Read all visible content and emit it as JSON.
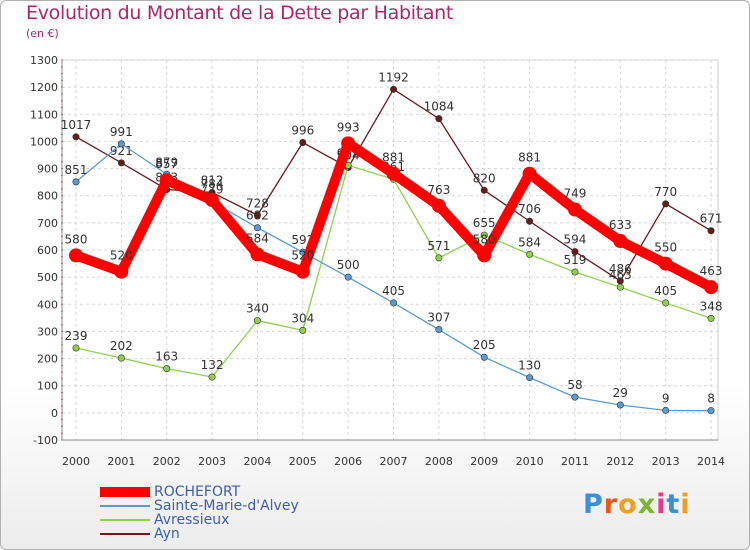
{
  "title": "Evolution du Montant de la Dette par Habitant",
  "subtitle": "(en €)",
  "brand": "Proxiti",
  "brand_colors": [
    "#3a8fd8",
    "#e85a1c",
    "#f0a020",
    "#7ab82a",
    "#e83a8a",
    "#3a8fd8",
    "#f0a020"
  ],
  "chart_data": {
    "type": "line",
    "x": [
      "2000",
      "2001",
      "2002",
      "2003",
      "2004",
      "2005",
      "2006",
      "2007",
      "2008",
      "2009",
      "2010",
      "2011",
      "2012",
      "2013",
      "2014"
    ],
    "ylim": [
      -100,
      1300
    ],
    "yticks": [
      "-100",
      "0",
      "100",
      "200",
      "300",
      "400",
      "500",
      "600",
      "700",
      "800",
      "900",
      "1000",
      "1100",
      "1200",
      "1300"
    ],
    "grid": true,
    "legend_position": "bottom-left",
    "series": [
      {
        "name": "ROCHEFORT",
        "color": "#ff0000",
        "values": [
          580,
          520,
          857,
          784,
          584,
          520,
          993,
          881,
          763,
          580,
          881,
          749,
          633,
          550,
          463
        ],
        "labels": [
          "580",
          "520",
          "857",
          "784",
          "584",
          "520",
          "993",
          "881",
          "763",
          "580",
          "881",
          "749",
          "633",
          "550",
          "463"
        ]
      },
      {
        "name": "Sainte-Marie-d'Alvey",
        "color": "#5b9bd5",
        "values": [
          851,
          991,
          879,
          779,
          682,
          592,
          500,
          405,
          307,
          205,
          130,
          58,
          29,
          9,
          8
        ],
        "labels": [
          "851",
          "991",
          "879",
          "779",
          "682",
          "592",
          "500",
          "405",
          "307",
          "205",
          "130",
          "58",
          "29",
          "9",
          "8"
        ]
      },
      {
        "name": "Avressieux",
        "color": "#8fd14f",
        "values": [
          239,
          202,
          163,
          132,
          340,
          304,
          912,
          861,
          571,
          655,
          584,
          519,
          463,
          405,
          348
        ],
        "labels": [
          "239",
          "202",
          "163",
          "132",
          "340",
          "304",
          "912",
          "861",
          "571",
          "655",
          "584",
          "519",
          "463",
          "405",
          "348"
        ]
      },
      {
        "name": "Ayn",
        "color": "#6b1a1a",
        "values": [
          1017,
          921,
          823,
          812,
          728,
          996,
          904,
          1192,
          1084,
          820,
          706,
          594,
          486,
          770,
          671
        ],
        "labels": [
          "1017",
          "921",
          "823",
          "812",
          "728",
          "996",
          "904",
          "1192",
          "1084",
          "820",
          "706",
          "594",
          "486",
          "770",
          "671"
        ]
      }
    ]
  }
}
